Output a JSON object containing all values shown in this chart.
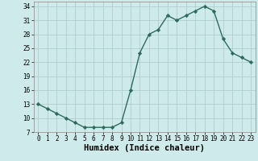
{
  "xlabel": "Humidex (Indice chaleur)",
  "x": [
    0,
    1,
    2,
    3,
    4,
    5,
    6,
    7,
    8,
    9,
    10,
    11,
    12,
    13,
    14,
    15,
    16,
    17,
    18,
    19,
    20,
    21,
    22,
    23
  ],
  "y": [
    13,
    12,
    11,
    10,
    9,
    8,
    8,
    8,
    8,
    9,
    16,
    24,
    28,
    29,
    32,
    31,
    32,
    33,
    34,
    33,
    27,
    24,
    23,
    22
  ],
  "line_color": "#2e6b5e",
  "marker": "D",
  "marker_size": 2.2,
  "bg_color": "#ceeaea",
  "grid_color": "#aecece",
  "ylim": [
    7,
    35
  ],
  "xlim": [
    -0.5,
    23.5
  ],
  "yticks": [
    7,
    10,
    13,
    16,
    19,
    22,
    25,
    28,
    31,
    34
  ],
  "xticks": [
    0,
    1,
    2,
    3,
    4,
    5,
    6,
    7,
    8,
    9,
    10,
    11,
    12,
    13,
    14,
    15,
    16,
    17,
    18,
    19,
    20,
    21,
    22,
    23
  ],
  "tick_label_fontsize": 5.5,
  "xlabel_fontsize": 7.5
}
